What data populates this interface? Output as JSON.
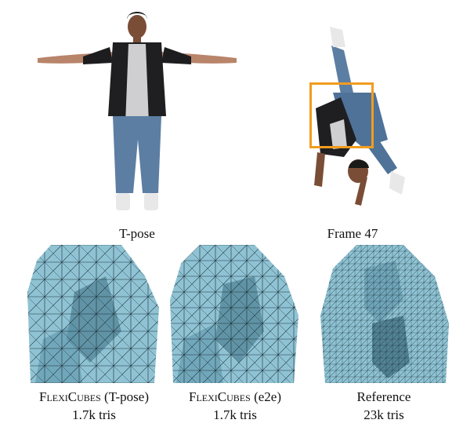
{
  "top": {
    "left_caption": "T-pose",
    "right_caption": "Frame 47",
    "highlight_color": "#f29c1f"
  },
  "bottom": [
    {
      "title_sc": "FlexiCubes",
      "title_suffix": " (T-pose)",
      "count": "1.7k tris"
    },
    {
      "title_sc": "FlexiCubes",
      "title_suffix": " (e2e)",
      "count": "1.7k tris"
    },
    {
      "title_sc": "",
      "title_suffix": "Reference",
      "count": "23k tris"
    }
  ],
  "colors": {
    "mesh_fill": "#8fc3d4",
    "mesh_shadow": "#3d6e80",
    "mesh_edge": "#1b2f38"
  }
}
